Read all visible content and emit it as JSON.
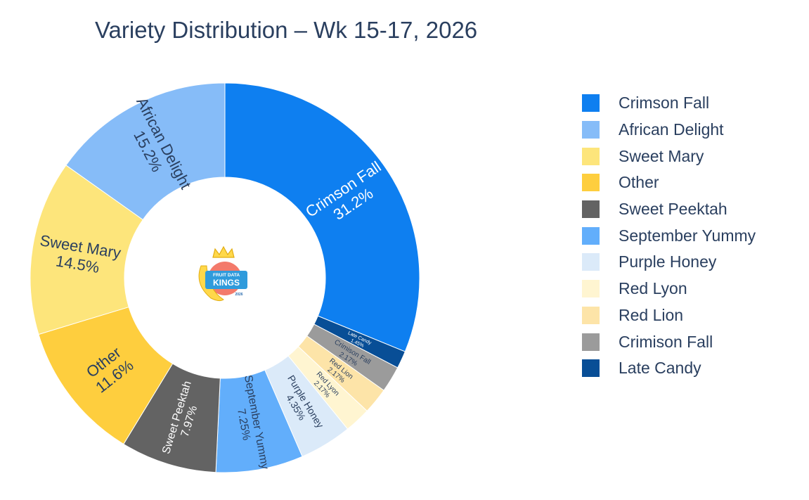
{
  "chart_data": {
    "type": "pie",
    "hole": 0.5,
    "title": "Variety Distribution – Wk 15-17, 2026",
    "slices": [
      {
        "label": "Crimson Fall",
        "value": 31.2,
        "pct_label": "31.2%",
        "color": "#0e7ff0"
      },
      {
        "label": "Late Candy",
        "value": 1.45,
        "pct_label": "1.45%",
        "color": "#084e96"
      },
      {
        "label": "Crimison Fall",
        "value": 2.17,
        "pct_label": "2.17%",
        "color": "#9b9b9b"
      },
      {
        "label": "Red Lion",
        "value": 2.17,
        "pct_label": "2.17%",
        "color": "#fde4a8"
      },
      {
        "label": "Red Lyon",
        "value": 2.17,
        "pct_label": "2.17%",
        "color": "#fff5d1"
      },
      {
        "label": "Purple Honey",
        "value": 4.35,
        "pct_label": "4.35%",
        "color": "#dbeaf9"
      },
      {
        "label": "September Yummy",
        "value": 7.25,
        "pct_label": "7.25%",
        "color": "#62aefb"
      },
      {
        "label": "Sweet Peektah",
        "value": 7.97,
        "pct_label": "7.97%",
        "color": "#636363"
      },
      {
        "label": "Other",
        "value": 11.6,
        "pct_label": "11.6%",
        "color": "#fece3e"
      },
      {
        "label": "Sweet Mary",
        "value": 14.5,
        "pct_label": "14.5%",
        "color": "#fde57b"
      },
      {
        "label": "African Delight",
        "value": 15.2,
        "pct_label": "15.2%",
        "color": "#86bcf8"
      }
    ],
    "legend": [
      {
        "label": "Crimson Fall",
        "color": "#0e7ff0"
      },
      {
        "label": "African Delight",
        "color": "#86bcf8"
      },
      {
        "label": "Sweet Mary",
        "color": "#fde57b"
      },
      {
        "label": "Other",
        "color": "#fece3e"
      },
      {
        "label": "Sweet Peektah",
        "color": "#636363"
      },
      {
        "label": "September Yummy",
        "color": "#62aefb"
      },
      {
        "label": "Purple Honey",
        "color": "#dbeaf9"
      },
      {
        "label": "Red Lyon",
        "color": "#fff5d1"
      },
      {
        "label": "Red Lion",
        "color": "#fde4a8"
      },
      {
        "label": "Crimison Fall",
        "color": "#9b9b9b"
      },
      {
        "label": "Late Candy",
        "color": "#084e96"
      }
    ],
    "legend_position": "right"
  },
  "logo": {
    "line1": "FRUIT DATA",
    "line2": "KINGS",
    "line3": "2026"
  }
}
